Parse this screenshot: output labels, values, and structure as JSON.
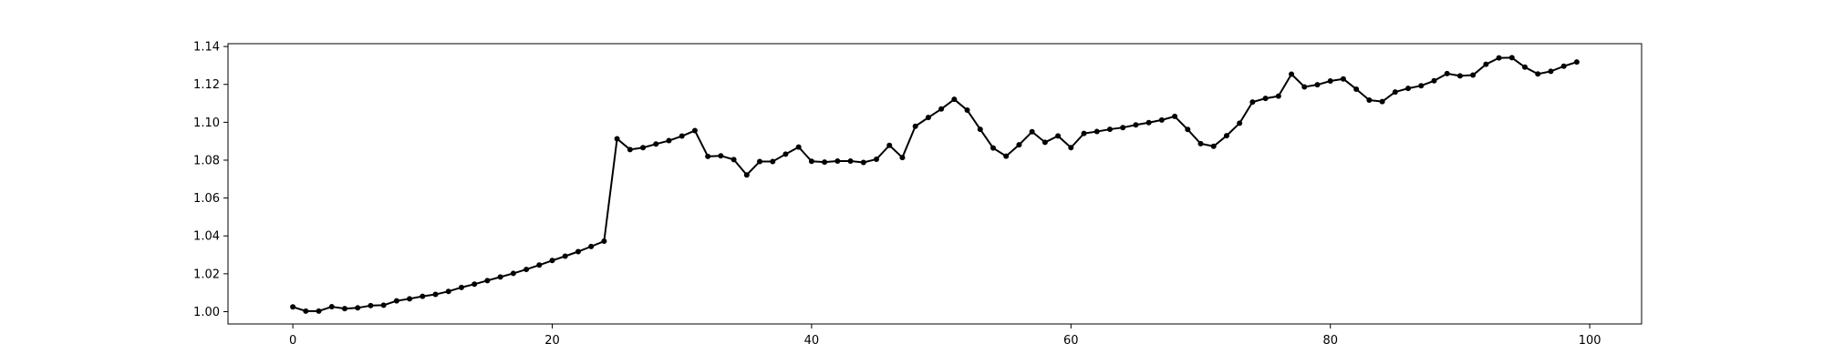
{
  "chart_data": {
    "type": "line",
    "title": "",
    "xlabel": "",
    "ylabel": "",
    "xlim": [
      -5,
      104
    ],
    "ylim": [
      0.9935,
      1.1415
    ],
    "grid": false,
    "legend": null,
    "marker": "circle",
    "line_color": "#000000",
    "x_ticks": [
      0,
      20,
      40,
      60,
      80,
      100
    ],
    "x_tick_labels": [
      "0",
      "20",
      "40",
      "60",
      "80",
      "100"
    ],
    "y_ticks": [
      1.0,
      1.02,
      1.04,
      1.06,
      1.08,
      1.1,
      1.12,
      1.14
    ],
    "y_tick_labels": [
      "1.00",
      "1.02",
      "1.04",
      "1.06",
      "1.08",
      "1.10",
      "1.12",
      "1.14"
    ],
    "series": [
      {
        "x": [
          0,
          1,
          2,
          3,
          4,
          5,
          6,
          7,
          8,
          9,
          10,
          11,
          12,
          13,
          14,
          15,
          16,
          17,
          18,
          19,
          20,
          21,
          22,
          23,
          24,
          25,
          26,
          27,
          28,
          29,
          30,
          31,
          32,
          33,
          34,
          35,
          36,
          37,
          38,
          39,
          40,
          41,
          42,
          43,
          44,
          45,
          46,
          47,
          48,
          49,
          50,
          51,
          52,
          53,
          54,
          55,
          56,
          57,
          58,
          59,
          60,
          61,
          62,
          63,
          64,
          65,
          66,
          67,
          68,
          69,
          70,
          71,
          72,
          73,
          74,
          75,
          76,
          77,
          78,
          79,
          80,
          81,
          82,
          83,
          84,
          85,
          86,
          87,
          88,
          89,
          90,
          91,
          92,
          93,
          94,
          95,
          96,
          97,
          98,
          99
        ],
        "y": [
          1.0025,
          1.0003,
          1.0003,
          1.0026,
          1.0016,
          1.002,
          1.0032,
          1.0034,
          1.0057,
          1.0068,
          1.0081,
          1.0091,
          1.0107,
          1.0128,
          1.0145,
          1.0164,
          1.0183,
          1.0202,
          1.0223,
          1.0246,
          1.027,
          1.0293,
          1.0317,
          1.0344,
          1.0372,
          1.0913,
          1.0856,
          1.0866,
          1.0885,
          1.0903,
          1.0927,
          1.0956,
          1.082,
          1.0823,
          1.0803,
          1.0722,
          1.0793,
          1.0793,
          1.0832,
          1.0869,
          1.0794,
          1.079,
          1.0795,
          1.0795,
          1.0788,
          1.0805,
          1.0878,
          1.0814,
          1.0979,
          1.1025,
          1.107,
          1.1121,
          1.1064,
          1.0963,
          1.0864,
          1.0821,
          1.0881,
          1.095,
          1.0894,
          1.0928,
          1.0866,
          1.0941,
          1.0951,
          1.0963,
          1.0972,
          1.0986,
          1.0998,
          1.1012,
          1.1031,
          1.0962,
          1.0887,
          1.0873,
          1.0929,
          1.0995,
          1.1107,
          1.1126,
          1.1138,
          1.1254,
          1.1187,
          1.1198,
          1.1218,
          1.1229,
          1.1175,
          1.1117,
          1.1109,
          1.116,
          1.1179,
          1.1193,
          1.1219,
          1.1257,
          1.1245,
          1.1249,
          1.1306,
          1.134,
          1.1341,
          1.1291,
          1.1255,
          1.1269,
          1.1296,
          1.1318
        ]
      }
    ]
  }
}
